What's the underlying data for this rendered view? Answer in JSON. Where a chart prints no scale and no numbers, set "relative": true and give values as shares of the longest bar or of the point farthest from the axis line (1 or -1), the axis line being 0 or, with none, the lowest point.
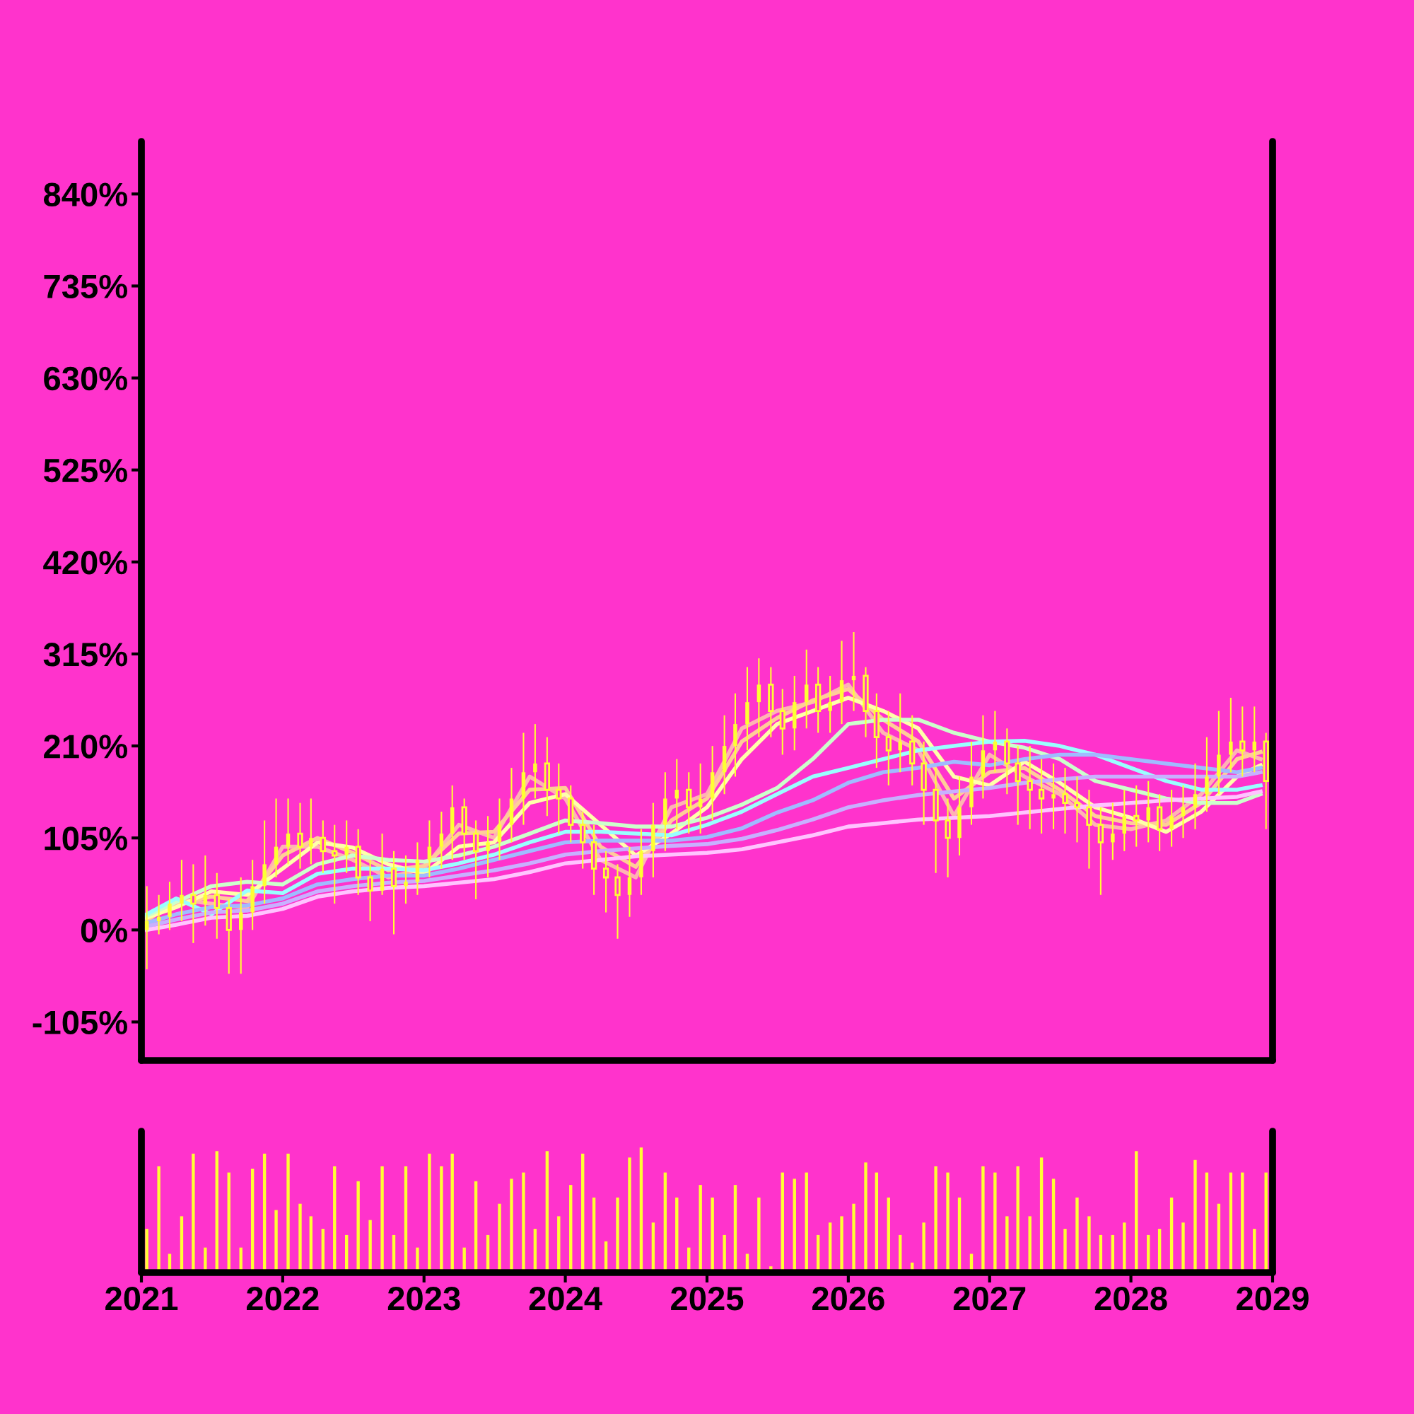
{
  "chart_data": [
    {
      "type": "candlestick",
      "tick_labels": "y",
      "grid": false,
      "color": "#ffff33",
      "ylim": [
        -149,
        900
      ],
      "yticks": [
        {
          "value": -105,
          "label": "-105%"
        },
        {
          "value": 0,
          "label": "0%"
        },
        {
          "value": 105,
          "label": "105%"
        },
        {
          "value": 210,
          "label": "210%"
        },
        {
          "value": 315,
          "label": "315%"
        },
        {
          "value": 420,
          "label": "420%"
        },
        {
          "value": 525,
          "label": "525%"
        },
        {
          "value": 630,
          "label": "630%"
        },
        {
          "value": 735,
          "label": "735%"
        },
        {
          "value": 840,
          "label": "840%"
        }
      ],
      "xlim": [
        "2021-01-01",
        "2029-01-01"
      ],
      "x": [
        "2021-01-15",
        "2021-02-15",
        "2021-03-15",
        "2021-04-15",
        "2021-05-15",
        "2021-06-15",
        "2021-07-15",
        "2021-08-15",
        "2021-09-15",
        "2021-10-15",
        "2021-11-15",
        "2021-12-15",
        "2022-01-15",
        "2022-02-15",
        "2022-03-15",
        "2022-04-15",
        "2022-05-15",
        "2022-06-15",
        "2022-07-15",
        "2022-08-15",
        "2022-09-15",
        "2022-10-15",
        "2022-11-15",
        "2022-12-15",
        "2023-01-15",
        "2023-02-15",
        "2023-03-15",
        "2023-04-15",
        "2023-05-15",
        "2023-06-15",
        "2023-07-15",
        "2023-08-15",
        "2023-09-15",
        "2023-10-15",
        "2023-11-15",
        "2023-12-15",
        "2024-01-15",
        "2024-02-15",
        "2024-03-15",
        "2024-04-15",
        "2024-05-15",
        "2024-06-15",
        "2024-07-15",
        "2024-08-15",
        "2024-09-15",
        "2024-10-15",
        "2024-11-15",
        "2024-12-15",
        "2025-01-15",
        "2025-02-15",
        "2025-03-15",
        "2025-04-15",
        "2025-05-15",
        "2025-06-15",
        "2025-07-15",
        "2025-08-15",
        "2025-09-15",
        "2025-10-15",
        "2025-11-15",
        "2025-12-15",
        "2026-01-15",
        "2026-02-15",
        "2026-03-15",
        "2026-04-15",
        "2026-05-15",
        "2026-06-15",
        "2026-07-15",
        "2026-08-15",
        "2026-09-15",
        "2026-10-15",
        "2026-11-15",
        "2026-12-15",
        "2027-01-15",
        "2027-02-15",
        "2027-03-15",
        "2027-04-15",
        "2027-05-15",
        "2027-06-15",
        "2027-07-15",
        "2027-08-15",
        "2027-09-15",
        "2027-10-15",
        "2027-11-15",
        "2027-12-15",
        "2028-01-15",
        "2028-02-15",
        "2028-03-15",
        "2028-04-15",
        "2028-05-15",
        "2028-06-15",
        "2028-07-15",
        "2028-08-15",
        "2028-09-15",
        "2028-10-15",
        "2028-11-15",
        "2028-12-15"
      ],
      "ohlc": [
        [
          0,
          50,
          -45,
          10
        ],
        [
          10,
          40,
          -5,
          15
        ],
        [
          15,
          55,
          0,
          30
        ],
        [
          30,
          80,
          10,
          40
        ],
        [
          40,
          75,
          -15,
          30
        ],
        [
          30,
          85,
          5,
          40
        ],
        [
          40,
          65,
          -10,
          25
        ],
        [
          25,
          35,
          -50,
          0
        ],
        [
          0,
          60,
          -50,
          20
        ],
        [
          20,
          80,
          0,
          50
        ],
        [
          50,
          125,
          30,
          75
        ],
        [
          75,
          150,
          60,
          95
        ],
        [
          95,
          150,
          75,
          110
        ],
        [
          110,
          145,
          70,
          95
        ],
        [
          95,
          150,
          75,
          105
        ],
        [
          105,
          125,
          65,
          90
        ],
        [
          90,
          120,
          30,
          85
        ],
        [
          85,
          125,
          65,
          95
        ],
        [
          95,
          115,
          40,
          60
        ],
        [
          60,
          80,
          10,
          45
        ],
        [
          45,
          110,
          40,
          70
        ],
        [
          70,
          90,
          -5,
          50
        ],
        [
          50,
          85,
          30,
          55
        ],
        [
          55,
          100,
          40,
          80
        ],
        [
          80,
          125,
          60,
          95
        ],
        [
          95,
          135,
          70,
          110
        ],
        [
          110,
          165,
          80,
          140
        ],
        [
          140,
          150,
          80,
          110
        ],
        [
          110,
          125,
          35,
          90
        ],
        [
          90,
          130,
          60,
          100
        ],
        [
          100,
          150,
          80,
          120
        ],
        [
          120,
          185,
          100,
          150
        ],
        [
          150,
          225,
          120,
          180
        ],
        [
          180,
          235,
          150,
          190
        ],
        [
          190,
          220,
          130,
          160
        ],
        [
          160,
          190,
          110,
          150
        ],
        [
          150,
          165,
          100,
          120
        ],
        [
          120,
          135,
          70,
          100
        ],
        [
          100,
          120,
          40,
          70
        ],
        [
          70,
          90,
          20,
          60
        ],
        [
          60,
          75,
          -10,
          40
        ],
        [
          40,
          95,
          15,
          60
        ],
        [
          60,
          115,
          40,
          90
        ],
        [
          90,
          145,
          60,
          120
        ],
        [
          120,
          180,
          90,
          150
        ],
        [
          150,
          195,
          115,
          160
        ],
        [
          160,
          180,
          110,
          140
        ],
        [
          140,
          190,
          110,
          150
        ],
        [
          150,
          210,
          125,
          180
        ],
        [
          180,
          245,
          155,
          210
        ],
        [
          210,
          270,
          175,
          235
        ],
        [
          235,
          300,
          205,
          260
        ],
        [
          260,
          310,
          220,
          280
        ],
        [
          280,
          300,
          220,
          250
        ],
        [
          250,
          275,
          200,
          230
        ],
        [
          230,
          290,
          205,
          260
        ],
        [
          260,
          320,
          230,
          280
        ],
        [
          280,
          300,
          225,
          250
        ],
        [
          250,
          290,
          225,
          260
        ],
        [
          260,
          330,
          235,
          285
        ],
        [
          285,
          340,
          250,
          290
        ],
        [
          290,
          300,
          220,
          250
        ],
        [
          250,
          270,
          185,
          220
        ],
        [
          220,
          250,
          165,
          205
        ],
        [
          205,
          270,
          180,
          215
        ],
        [
          215,
          245,
          165,
          190
        ],
        [
          190,
          215,
          120,
          160
        ],
        [
          160,
          185,
          65,
          125
        ],
        [
          125,
          150,
          60,
          105
        ],
        [
          105,
          175,
          85,
          140
        ],
        [
          140,
          215,
          120,
          175
        ],
        [
          175,
          245,
          150,
          205
        ],
        [
          205,
          250,
          180,
          215
        ],
        [
          215,
          230,
          155,
          190
        ],
        [
          190,
          210,
          120,
          170
        ],
        [
          170,
          210,
          115,
          160
        ],
        [
          160,
          195,
          110,
          150
        ],
        [
          150,
          190,
          115,
          155
        ],
        [
          155,
          185,
          110,
          145
        ],
        [
          145,
          175,
          100,
          140
        ],
        [
          140,
          160,
          70,
          120
        ],
        [
          120,
          140,
          40,
          100
        ],
        [
          100,
          145,
          80,
          110
        ],
        [
          110,
          160,
          90,
          130
        ],
        [
          130,
          165,
          95,
          125
        ],
        [
          125,
          170,
          100,
          140
        ],
        [
          140,
          155,
          90,
          115
        ],
        [
          115,
          160,
          95,
          130
        ],
        [
          130,
          165,
          105,
          140
        ],
        [
          140,
          190,
          115,
          155
        ],
        [
          155,
          220,
          135,
          175
        ],
        [
          175,
          250,
          155,
          200
        ],
        [
          200,
          265,
          180,
          215
        ],
        [
          215,
          255,
          175,
          205
        ],
        [
          205,
          255,
          180,
          215
        ],
        [
          215,
          225,
          115,
          170
        ]
      ],
      "series": [
        {
          "type": "line",
          "color": "#ffb3b3",
          "x": [
            "2021-01-15",
            "2021-04",
            "2021-07",
            "2021-10",
            "2022-01",
            "2022-04",
            "2022-07",
            "2022-10",
            "2023-01",
            "2023-04",
            "2023-07",
            "2023-10",
            "2024-01",
            "2024-04",
            "2024-07",
            "2024-10",
            "2025-01",
            "2025-04",
            "2025-07",
            "2025-10",
            "2026-01",
            "2026-04",
            "2026-07",
            "2026-10",
            "2027-01",
            "2027-04",
            "2027-07",
            "2027-10",
            "2028-01",
            "2028-04",
            "2028-07",
            "2028-10",
            "2028-12-01"
          ],
          "values": [
            10,
            35,
            30,
            25,
            95,
            95,
            80,
            60,
            70,
            120,
            105,
            175,
            150,
            80,
            60,
            140,
            155,
            230,
            250,
            260,
            280,
            225,
            205,
            130,
            200,
            175,
            155,
            120,
            115,
            125,
            155,
            205,
            195
          ]
        },
        {
          "type": "line",
          "color": "#ffcc99",
          "x": [
            "2021-01-15",
            "2021-04",
            "2021-07",
            "2021-10",
            "2022-01",
            "2022-04",
            "2022-07",
            "2022-10",
            "2023-01",
            "2023-04",
            "2023-07",
            "2023-10",
            "2024-01",
            "2024-04",
            "2024-07",
            "2024-10",
            "2025-01",
            "2025-04",
            "2025-07",
            "2025-10",
            "2026-01",
            "2026-04",
            "2026-07",
            "2026-10",
            "2027-01",
            "2027-04",
            "2027-07",
            "2027-10",
            "2028-01",
            "2028-04",
            "2028-07",
            "2028-10",
            "2028-12-01"
          ],
          "values": [
            12,
            30,
            38,
            33,
            85,
            105,
            88,
            68,
            73,
            110,
            112,
            160,
            162,
            95,
            72,
            125,
            150,
            215,
            242,
            262,
            275,
            240,
            215,
            150,
            180,
            185,
            160,
            130,
            122,
            120,
            145,
            195,
            203
          ]
        },
        {
          "type": "line",
          "color": "#ffffaa",
          "x": [
            "2021-01-15",
            "2021-04",
            "2021-07",
            "2021-10",
            "2022-01",
            "2022-04",
            "2022-07",
            "2022-10",
            "2023-01",
            "2023-04",
            "2023-07",
            "2023-10",
            "2024-01",
            "2024-04",
            "2024-07",
            "2024-10",
            "2025-01",
            "2025-04",
            "2025-07",
            "2025-10",
            "2026-01",
            "2026-04",
            "2026-07",
            "2026-10",
            "2027-01",
            "2027-04",
            "2027-07",
            "2027-10",
            "2028-01",
            "2028-04",
            "2028-07",
            "2028-10",
            "2028-12-01"
          ],
          "values": [
            14,
            26,
            44,
            40,
            70,
            100,
            94,
            75,
            64,
            95,
            100,
            145,
            155,
            120,
            85,
            110,
            140,
            195,
            235,
            250,
            265,
            250,
            230,
            175,
            165,
            192,
            168,
            140,
            128,
            112,
            135,
            175,
            188
          ]
        },
        {
          "type": "line",
          "color": "#ccffcc",
          "x": [
            "2021-01-15",
            "2021-04",
            "2021-07",
            "2021-10",
            "2022-01",
            "2022-04",
            "2022-07",
            "2022-10",
            "2023-01",
            "2023-04",
            "2023-07",
            "2023-10",
            "2024-01",
            "2024-04",
            "2024-07",
            "2024-10",
            "2025-01",
            "2025-04",
            "2025-07",
            "2025-10",
            "2026-01",
            "2026-04",
            "2026-07",
            "2026-10",
            "2027-01",
            "2027-04",
            "2027-07",
            "2027-10",
            "2028-01",
            "2028-04",
            "2028-07",
            "2028-10",
            "2028-12-01"
          ],
          "values": [
            16,
            32,
            50,
            55,
            52,
            75,
            85,
            80,
            78,
            85,
            95,
            110,
            125,
            122,
            118,
            118,
            128,
            143,
            162,
            195,
            235,
            240,
            240,
            225,
            215,
            208,
            195,
            170,
            160,
            150,
            145,
            145,
            155
          ]
        },
        {
          "type": "line",
          "color": "#99ffff",
          "x": [
            "2021-01-15",
            "2021-04",
            "2021-07",
            "2021-10",
            "2022-01",
            "2022-04",
            "2022-07",
            "2022-10",
            "2023-01",
            "2023-04",
            "2023-07",
            "2023-10",
            "2024-01",
            "2024-04",
            "2024-07",
            "2024-10",
            "2025-01",
            "2025-04",
            "2025-07",
            "2025-10",
            "2026-01",
            "2026-04",
            "2026-07",
            "2026-10",
            "2027-01",
            "2027-04",
            "2027-07",
            "2027-10",
            "2028-01",
            "2028-04",
            "2028-07",
            "2028-10",
            "2028-12-01"
          ],
          "values": [
            18,
            36,
            18,
            45,
            42,
            64,
            70,
            70,
            68,
            76,
            86,
            100,
            112,
            112,
            110,
            108,
            120,
            135,
            155,
            175,
            185,
            195,
            205,
            210,
            215,
            216,
            210,
            200,
            185,
            170,
            160,
            160,
            165
          ]
        },
        {
          "type": "line",
          "color": "#a0bbff",
          "x": [
            "2021-01-15",
            "2021-04",
            "2021-07",
            "2021-10",
            "2022-01",
            "2022-04",
            "2022-07",
            "2022-10",
            "2023-01",
            "2023-04",
            "2023-07",
            "2023-10",
            "2024-01",
            "2024-04",
            "2024-07",
            "2024-10",
            "2025-01",
            "2025-04",
            "2025-07",
            "2025-10",
            "2026-01",
            "2026-04",
            "2026-07",
            "2026-10",
            "2027-01",
            "2027-04",
            "2027-07",
            "2027-10",
            "2028-01",
            "2028-04",
            "2028-07",
            "2028-10",
            "2028-12-01"
          ],
          "values": [
            8,
            18,
            26,
            28,
            36,
            52,
            58,
            62,
            62,
            70,
            80,
            90,
            100,
            102,
            102,
            102,
            106,
            116,
            134,
            148,
            168,
            180,
            185,
            192,
            188,
            195,
            200,
            200,
            195,
            190,
            185,
            180,
            185
          ]
        },
        {
          "type": "line",
          "color": "#c8b0ff",
          "x": [
            "2021-01-15",
            "2021-04",
            "2021-07",
            "2021-10",
            "2022-01",
            "2022-04",
            "2022-07",
            "2022-10",
            "2023-01",
            "2023-04",
            "2023-07",
            "2023-10",
            "2024-01",
            "2024-04",
            "2024-07",
            "2024-10",
            "2025-01",
            "2025-04",
            "2025-07",
            "2025-10",
            "2026-01",
            "2026-04",
            "2026-07",
            "2026-10",
            "2027-01",
            "2027-04",
            "2027-07",
            "2027-10",
            "2028-01",
            "2028-04",
            "2028-07",
            "2028-10",
            "2028-12-01"
          ],
          "values": [
            4,
            12,
            20,
            22,
            30,
            44,
            50,
            54,
            56,
            62,
            68,
            76,
            86,
            90,
            93,
            96,
            98,
            104,
            114,
            126,
            140,
            148,
            154,
            158,
            162,
            168,
            172,
            175,
            175,
            175,
            175,
            175,
            180
          ]
        },
        {
          "type": "line",
          "color": "#ffc4ff",
          "x": [
            "2021-01-15",
            "2021-04",
            "2021-07",
            "2021-10",
            "2022-01",
            "2022-04",
            "2022-07",
            "2022-10",
            "2023-01",
            "2023-04",
            "2023-07",
            "2023-10",
            "2024-01",
            "2024-04",
            "2024-07",
            "2024-10",
            "2025-01",
            "2025-04",
            "2025-07",
            "2025-10",
            "2026-01",
            "2026-04",
            "2026-07",
            "2026-10",
            "2027-01",
            "2027-04",
            "2027-07",
            "2027-10",
            "2028-01",
            "2028-04",
            "2028-07",
            "2028-10",
            "2028-12-01"
          ],
          "values": [
            0,
            6,
            14,
            16,
            24,
            38,
            44,
            48,
            50,
            54,
            58,
            66,
            76,
            80,
            84,
            86,
            88,
            92,
            100,
            108,
            118,
            122,
            126,
            128,
            130,
            134,
            138,
            142,
            145,
            148,
            150,
            152,
            158
          ]
        }
      ]
    },
    {
      "type": "bar",
      "relative": true,
      "tick_labels": "x",
      "grid": false,
      "color": "#ffff33",
      "xlim": [
        "2021-01-01",
        "2029-01-01"
      ],
      "xticks": [
        {
          "value": "2021-01-01",
          "label": "2021"
        },
        {
          "value": "2022-01-01",
          "label": "2022"
        },
        {
          "value": "2023-01-01",
          "label": "2023"
        },
        {
          "value": "2024-01-01",
          "label": "2024"
        },
        {
          "value": "2025-01-01",
          "label": "2025"
        },
        {
          "value": "2026-01-01",
          "label": "2026"
        },
        {
          "value": "2027-01-01",
          "label": "2027"
        },
        {
          "value": "2028-01-01",
          "label": "2028"
        },
        {
          "value": "2029-01-01",
          "label": "2029"
        }
      ],
      "x": [
        "2021-01-15",
        "2021-02-15",
        "2021-03-15",
        "2021-04-15",
        "2021-05-15",
        "2021-06-15",
        "2021-07-15",
        "2021-08-15",
        "2021-09-15",
        "2021-10-15",
        "2021-11-15",
        "2021-12-15",
        "2022-01-15",
        "2022-02-15",
        "2022-03-15",
        "2022-04-15",
        "2022-05-15",
        "2022-06-15",
        "2022-07-15",
        "2022-08-15",
        "2022-09-15",
        "2022-10-15",
        "2022-11-15",
        "2022-12-15",
        "2023-01-15",
        "2023-02-15",
        "2023-03-15",
        "2023-04-15",
        "2023-05-15",
        "2023-06-15",
        "2023-07-15",
        "2023-08-15",
        "2023-09-15",
        "2023-10-15",
        "2023-11-15",
        "2023-12-15",
        "2024-01-15",
        "2024-02-15",
        "2024-03-15",
        "2024-04-15",
        "2024-05-15",
        "2024-06-15",
        "2024-07-15",
        "2024-08-15",
        "2024-09-15",
        "2024-10-15",
        "2024-11-15",
        "2024-12-15",
        "2025-01-15",
        "2025-02-15",
        "2025-03-15",
        "2025-04-15",
        "2025-05-15",
        "2025-06-15",
        "2025-07-15",
        "2025-08-15",
        "2025-09-15",
        "2025-10-15",
        "2025-11-15",
        "2025-12-15",
        "2026-01-15",
        "2026-02-15",
        "2026-03-15",
        "2026-04-15",
        "2026-05-15",
        "2026-06-15",
        "2026-07-15",
        "2026-08-15",
        "2026-09-15",
        "2026-10-15",
        "2026-11-15",
        "2026-12-15",
        "2027-01-15",
        "2027-02-15",
        "2027-03-15",
        "2027-04-15",
        "2027-05-15",
        "2027-06-15",
        "2027-07-15",
        "2027-08-15",
        "2027-09-15",
        "2027-10-15",
        "2027-11-15",
        "2027-12-15",
        "2028-01-15",
        "2028-02-15",
        "2028-03-15",
        "2028-04-15",
        "2028-05-15",
        "2028-06-15",
        "2028-07-15",
        "2028-08-15",
        "2028-09-15",
        "2028-10-15",
        "2028-11-15",
        "2028-12-15"
      ],
      "values": [
        0.35,
        0.85,
        0.15,
        0.45,
        0.95,
        0.2,
        0.97,
        0.8,
        0.2,
        0.83,
        0.95,
        0.5,
        0.95,
        0.55,
        0.45,
        0.35,
        0.85,
        0.3,
        0.73,
        0.42,
        0.85,
        0.3,
        0.85,
        0.2,
        0.95,
        0.85,
        0.95,
        0.2,
        0.73,
        0.3,
        0.55,
        0.75,
        0.8,
        0.35,
        0.97,
        0.45,
        0.7,
        0.95,
        0.6,
        0.25,
        0.6,
        0.92,
        1.0,
        0.4,
        0.8,
        0.6,
        0.2,
        0.7,
        0.6,
        0.3,
        0.7,
        0.15,
        0.6,
        0.05,
        0.8,
        0.75,
        0.8,
        0.3,
        0.4,
        0.45,
        0.55,
        0.88,
        0.8,
        0.6,
        0.3,
        0.08,
        0.4,
        0.85,
        0.8,
        0.6,
        0.15,
        0.85,
        0.8,
        0.45,
        0.85,
        0.45,
        0.92,
        0.75,
        0.35,
        0.6,
        0.45,
        0.3,
        0.3,
        0.4,
        0.97,
        0.3,
        0.35,
        0.6,
        0.4,
        0.9,
        0.8,
        0.55,
        0.8,
        0.8,
        0.35,
        0.8
      ]
    }
  ]
}
